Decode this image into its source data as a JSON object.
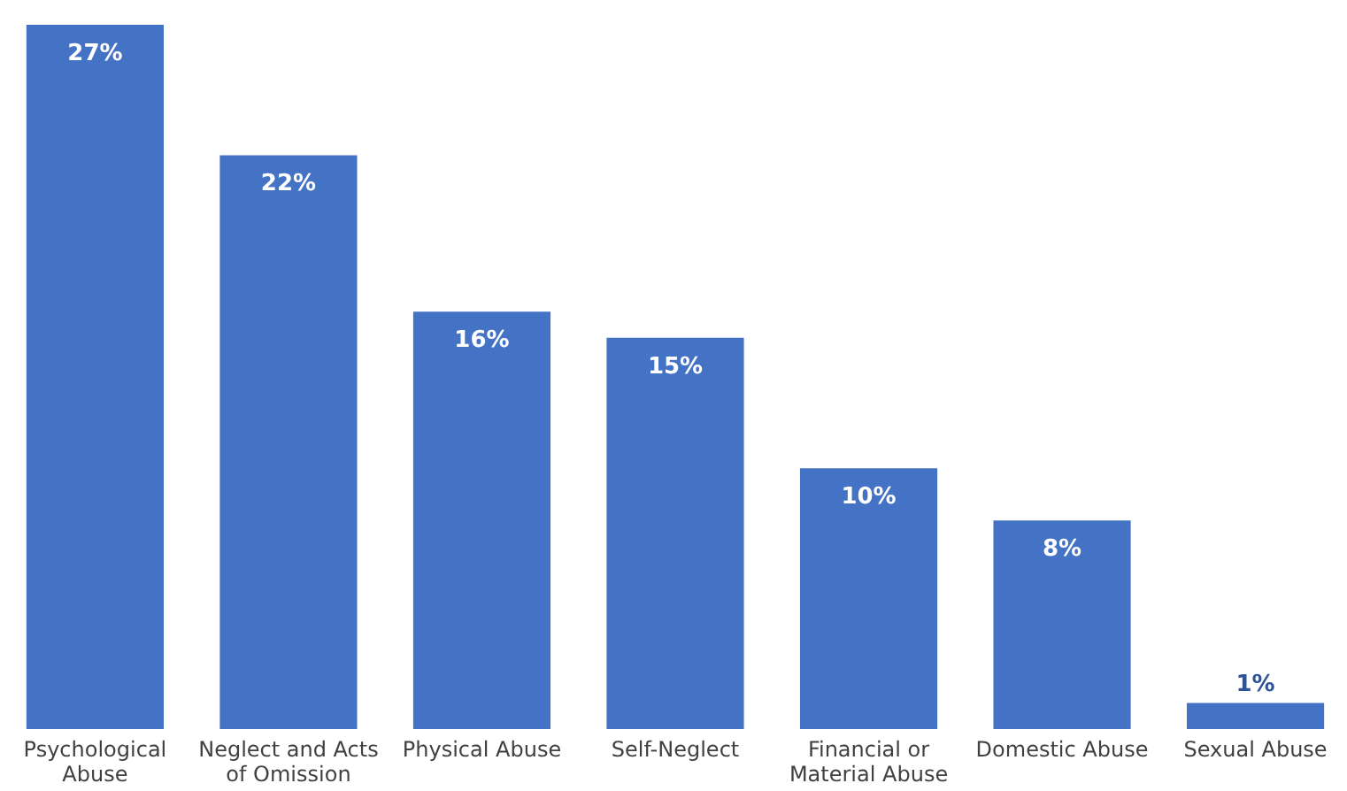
{
  "chart_data": {
    "type": "bar",
    "categories": [
      "Psychological Abuse",
      "Neglect and Acts of Omission",
      "Physical Abuse",
      "Self-Neglect",
      "Financial or Material Abuse",
      "Domestic Abuse",
      "Sexual Abuse"
    ],
    "values": [
      27,
      22,
      16,
      15,
      10,
      8,
      1
    ],
    "value_labels": [
      "27%",
      "22%",
      "16%",
      "15%",
      "10%",
      "8%",
      "1%"
    ],
    "color": "#4472c4"
  }
}
